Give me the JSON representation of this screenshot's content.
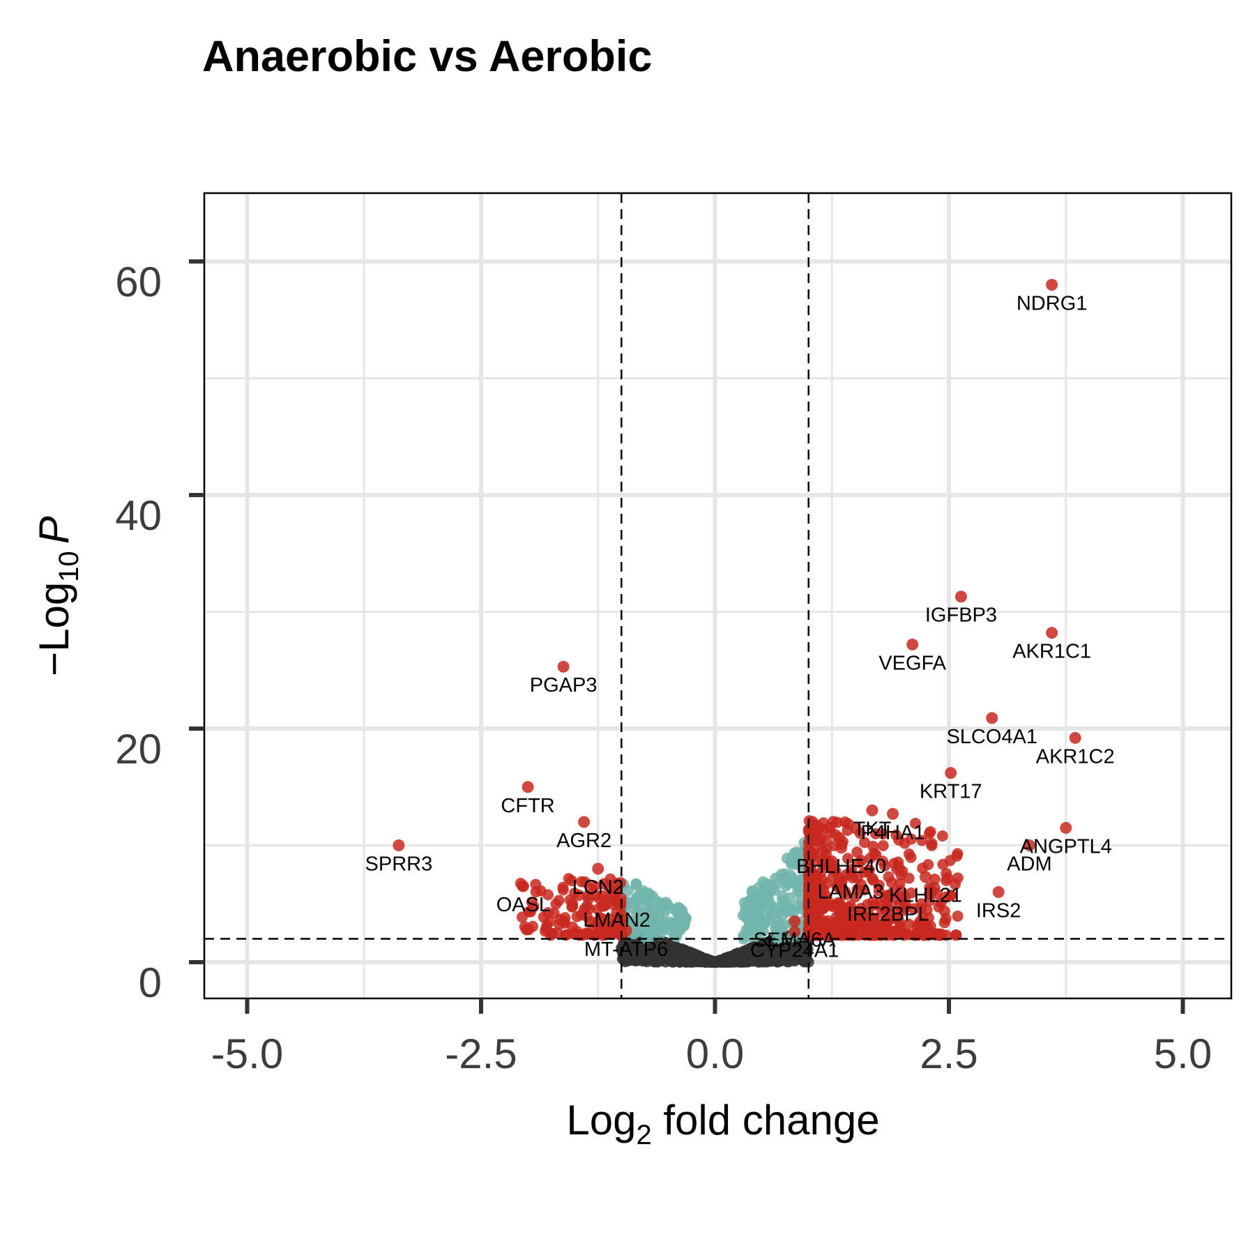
{
  "chart_data": {
    "type": "scatter",
    "title": "Anaerobic vs Aerobic",
    "xlabel_main": "Log",
    "xlabel_sub": "2",
    "xlabel_rest": " fold change",
    "ylabel_prefix": "−Log",
    "ylabel_sub": "10",
    "ylabel_italic": "P",
    "xlim": [
      -5.5,
      5.5
    ],
    "ylim": [
      -3,
      66
    ],
    "xticks": [
      -5.0,
      -2.5,
      0.0,
      2.5,
      5.0
    ],
    "xtick_labels": [
      "-5.0",
      "-2.5",
      "0.0",
      "2.5",
      "5.0"
    ],
    "yticks": [
      0,
      20,
      40,
      60
    ],
    "ytick_labels": [
      "0",
      "20",
      "40",
      "60"
    ],
    "fc_cutoff": [
      -1,
      1
    ],
    "p_cutoff": 2.0,
    "grid": true,
    "colors": {
      "significant": "#c8281f",
      "p_only": "#72b5ab",
      "not_significant": "#333333"
    },
    "labeled_genes": [
      {
        "gene": "NDRG1",
        "x": 3.6,
        "y": 58.0
      },
      {
        "gene": "IGFBP3",
        "x": 2.63,
        "y": 31.3
      },
      {
        "gene": "AKR1C1",
        "x": 3.6,
        "y": 28.2
      },
      {
        "gene": "VEGFA",
        "x": 2.11,
        "y": 27.2
      },
      {
        "gene": "PGAP3",
        "x": -1.62,
        "y": 25.3
      },
      {
        "gene": "SLCO4A1",
        "x": 2.96,
        "y": 20.9
      },
      {
        "gene": "AKR1C2",
        "x": 3.85,
        "y": 19.2
      },
      {
        "gene": "KRT17",
        "x": 2.52,
        "y": 16.2
      },
      {
        "gene": "CFTR",
        "x": -2.0,
        "y": 15.0
      },
      {
        "gene": "TKT",
        "x": 1.68,
        "y": 13.0
      },
      {
        "gene": "P4HA1",
        "x": 1.9,
        "y": 12.7
      },
      {
        "gene": "AGR2",
        "x": -1.4,
        "y": 12.0
      },
      {
        "gene": "ANGPTL4",
        "x": 3.75,
        "y": 11.5
      },
      {
        "gene": "SPRR3",
        "x": -3.38,
        "y": 10.0
      },
      {
        "gene": "BHLHE40",
        "x": 1.35,
        "y": 9.8
      },
      {
        "gene": "ADM",
        "x": 3.36,
        "y": 10.0
      },
      {
        "gene": "LCN2",
        "x": -1.25,
        "y": 8.0
      },
      {
        "gene": "LAMA3",
        "x": 1.45,
        "y": 7.6
      },
      {
        "gene": "KLHL21",
        "x": 2.25,
        "y": 7.3
      },
      {
        "gene": "OASL",
        "x": -2.05,
        "y": 6.5
      },
      {
        "gene": "IRF2BPL",
        "x": 1.85,
        "y": 5.7
      },
      {
        "gene": "IRS2",
        "x": 3.03,
        "y": 6.0
      },
      {
        "gene": "LMAN2",
        "x": -1.05,
        "y": 5.2
      },
      {
        "gene": "SEMA6A",
        "x": 0.85,
        "y": 3.5
      },
      {
        "gene": "MT-ATP6",
        "x": -0.95,
        "y": 2.7
      },
      {
        "gene": "CYP24A1",
        "x": 0.85,
        "y": 2.6
      }
    ]
  }
}
